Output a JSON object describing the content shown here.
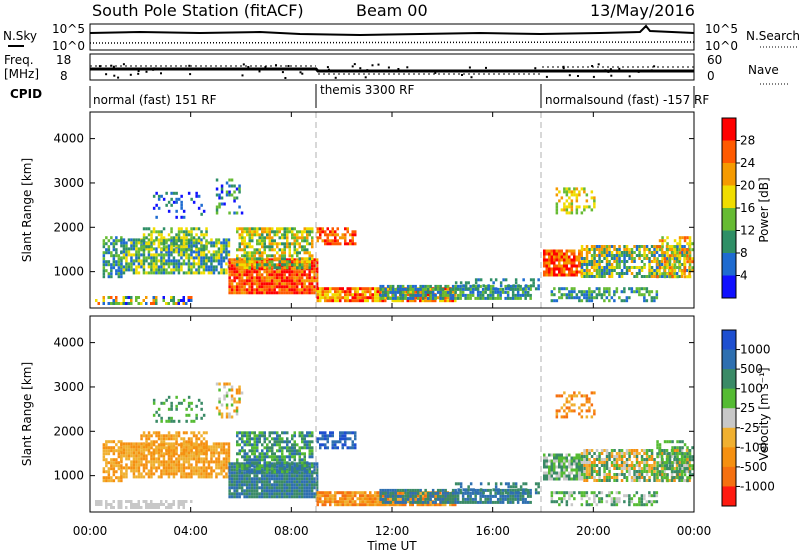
{
  "header": {
    "station": "South Pole Station (fitACF)",
    "beam": "Beam 00",
    "date": "13/May/2016"
  },
  "strip_labels": {
    "nsky": "N.Sky",
    "nsky_top": "10^5",
    "nsky_bottom": "10^0",
    "nsearch": "N.Search",
    "nsearch_top": "10^5",
    "nsearch_bottom": "10^0",
    "freq_top": "Freq.",
    "freq_unit": "[MHz]",
    "freq_hi": "18",
    "freq_lo": "8",
    "nave": "Nave",
    "nave_hi": "60",
    "nave_lo": "0",
    "cpid": "CPID"
  },
  "cpid_segments": [
    {
      "label": "normal (fast) 151 RF",
      "start_hour": 0
    },
    {
      "label": "themis 3300 RF",
      "start_hour": 9
    },
    {
      "label": "normalsound (fast) -157 RF",
      "start_hour": 18
    }
  ],
  "axis_labels": {
    "slant_range": "Slant Range [km]",
    "time": "Time UT",
    "power": "Power [dB]",
    "velocity": "Velocity [m s⁻¹]"
  },
  "colors": {
    "background": "#ffffff",
    "gridline": "#b0b0b0"
  },
  "chart_data": [
    {
      "type": "heatmap",
      "name": "power",
      "xlabel": "Time UT",
      "ylabel": "Slant Range [km]",
      "xlim": [
        0,
        24
      ],
      "ylim": [
        180,
        4600
      ],
      "x_ticks": [
        "00:00",
        "04:00",
        "08:00",
        "12:00",
        "16:00",
        "20:00",
        "00:00"
      ],
      "y_ticks": [
        1000,
        2000,
        3000,
        4000
      ],
      "colorbar": {
        "label": "Power [dB]",
        "ticks": [
          "4",
          "8",
          "12",
          "16",
          "20",
          "24",
          "28"
        ],
        "colors": [
          "#1010ff",
          "#1e6bd0",
          "#2f8f66",
          "#66bb33",
          "#f0dd00",
          "#f59a00",
          "#ff5a00",
          "#ff0000"
        ]
      }
    },
    {
      "type": "heatmap",
      "name": "velocity",
      "xlabel": "Time UT",
      "ylabel": "Slant Range [km]",
      "xlim": [
        0,
        24
      ],
      "ylim": [
        180,
        4600
      ],
      "x_ticks": [
        "00:00",
        "04:00",
        "08:00",
        "12:00",
        "16:00",
        "20:00",
        "00:00"
      ],
      "y_ticks": [
        1000,
        2000,
        3000,
        4000
      ],
      "colorbar": {
        "label": "Velocity [m s⁻¹]",
        "ticks": [
          "1000",
          "500",
          "100",
          "25",
          "-25",
          "-100",
          "-500",
          "-1000"
        ],
        "colors": [
          "#1e4fd0",
          "#2e6fb0",
          "#3a8a66",
          "#55bb33",
          "#c8c8c8",
          "#f0b030",
          "#f59010",
          "#f57010",
          "#ff1a10"
        ]
      }
    }
  ]
}
